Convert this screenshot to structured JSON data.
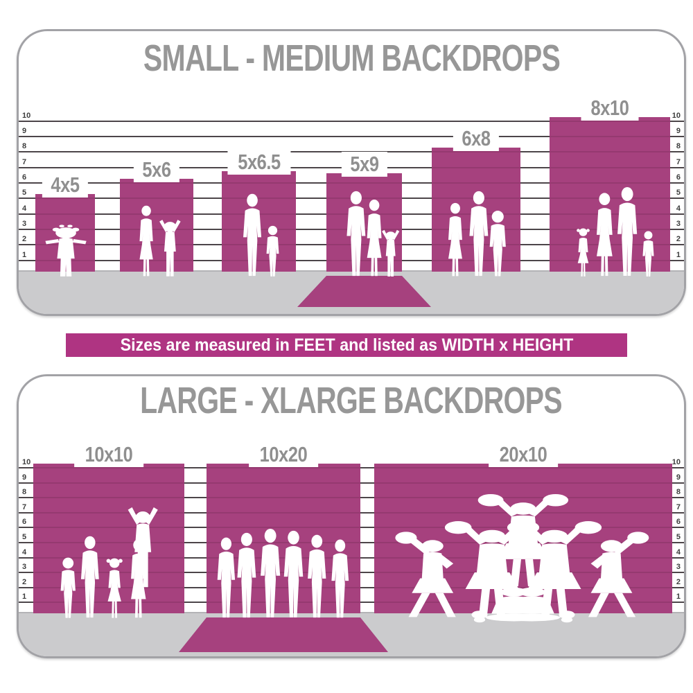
{
  "colors": {
    "backdrop": "#A6417E",
    "banner_bg": "#AF3482",
    "floor": "#CBCBCD",
    "ruler_line": "#4F4F4F",
    "title": "#979797",
    "size_label": "#8F8F8F",
    "tick": "#3D3D3D",
    "panel_border": "#A2A2A6",
    "silhouette": "#FFFFFF",
    "background": "#FFFFFF"
  },
  "banner": {
    "label": "Sizes are measured in FEET and listed as WIDTH x HEIGHT"
  },
  "panels": [
    {
      "title": "SMALL - MEDIUM BACKDROPS",
      "ruler_unit": "feet",
      "ruler_ticks": [
        "1",
        "2",
        "3",
        "4",
        "5",
        "6",
        "7",
        "8",
        "9",
        "10"
      ],
      "bars": [
        {
          "label": "4x5",
          "width_ft": 4,
          "height_ft": 5,
          "floor_sweep": false,
          "people": [
            "toddler-girl-arms-out"
          ]
        },
        {
          "label": "5x6",
          "width_ft": 5,
          "height_ft": 6,
          "floor_sweep": false,
          "people": [
            "woman",
            "child-arms-raised"
          ]
        },
        {
          "label": "5x6.5",
          "width_ft": 5,
          "height_ft": 6.5,
          "floor_sweep": false,
          "people": [
            "man-in-suit",
            "boy"
          ]
        },
        {
          "label": "5x9",
          "width_ft": 5,
          "height_ft": 9,
          "floor_sweep": true,
          "people": [
            "man",
            "woman",
            "toddler-arm-raised"
          ]
        },
        {
          "label": "6x8",
          "width_ft": 6,
          "height_ft": 8,
          "floor_sweep": false,
          "people": [
            "woman",
            "man",
            "boy"
          ]
        },
        {
          "label": "8x10",
          "width_ft": 8,
          "height_ft": 10,
          "floor_sweep": false,
          "people": [
            "girl",
            "woman",
            "man",
            "toddler"
          ]
        }
      ]
    },
    {
      "title": "LARGE - XLARGE BACKDROPS",
      "ruler_unit": "feet",
      "ruler_ticks": [
        "1",
        "2",
        "3",
        "4",
        "5",
        "6",
        "7",
        "8",
        "9",
        "10"
      ],
      "bars": [
        {
          "label": "10x10",
          "width_ft": 10,
          "height_ft": 10,
          "floor_sweep": false,
          "people": [
            "boy",
            "man",
            "girl",
            "woman",
            "child-on-shoulders-arms-raised"
          ]
        },
        {
          "label": "10x20",
          "width_ft": 10,
          "height_ft": 20,
          "floor_sweep": true,
          "people": [
            "man",
            "man",
            "man",
            "man",
            "man",
            "man"
          ]
        },
        {
          "label": "20x10",
          "width_ft": 20,
          "height_ft": 10,
          "floor_sweep": false,
          "people": [
            "cheerleader",
            "cheerleader",
            "cheerleader",
            "cheerleader",
            "cheerleader",
            "sitting-cheerleader",
            "sitting-cheerleader",
            "pom-pom",
            "pom-pom"
          ]
        }
      ]
    }
  ],
  "chart_data": [
    {
      "type": "bar",
      "title": "SMALL - MEDIUM BACKDROPS",
      "categories": [
        "4x5",
        "5x6",
        "5x6.5",
        "5x9",
        "6x8",
        "8x10"
      ],
      "series": [
        {
          "name": "width_ft",
          "values": [
            4,
            5,
            5,
            5,
            6,
            8
          ]
        },
        {
          "name": "height_ft",
          "values": [
            5,
            6,
            6.5,
            9,
            8,
            10
          ]
        }
      ],
      "ylabel": "feet",
      "ylim": [
        0,
        10
      ],
      "grid": true,
      "note": "Sizes listed as WIDTH x HEIGHT; the 5x9 backdrop is drawn with its extra length sweeping onto the floor"
    },
    {
      "type": "bar",
      "title": "LARGE - XLARGE BACKDROPS",
      "categories": [
        "10x10",
        "10x20",
        "20x10"
      ],
      "series": [
        {
          "name": "width_ft",
          "values": [
            10,
            10,
            20
          ]
        },
        {
          "name": "height_ft",
          "values": [
            10,
            20,
            10
          ]
        }
      ],
      "ylabel": "feet",
      "ylim": [
        0,
        10
      ],
      "grid": true,
      "note": "The 10x20 backdrop is drawn with its extra length sweeping onto the floor"
    }
  ]
}
